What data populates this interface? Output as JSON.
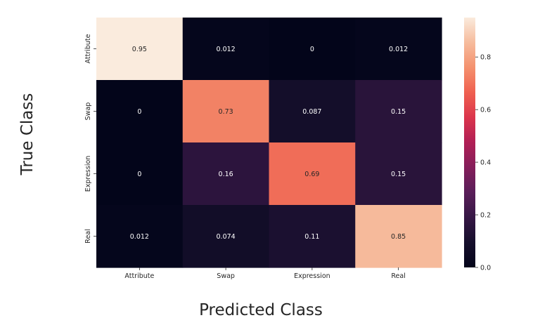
{
  "chart_data": {
    "type": "heatmap",
    "xlabel": "Predicted Class",
    "ylabel": "True Class",
    "x_categories": [
      "Attribute",
      "Swap",
      "Expression",
      "Real"
    ],
    "y_categories": [
      "Attribute",
      "Swap",
      "Expression",
      "Real"
    ],
    "values": [
      [
        0.95,
        0.012,
        0,
        0.012
      ],
      [
        0,
        0.73,
        0.087,
        0.15
      ],
      [
        0,
        0.16,
        0.69,
        0.15
      ],
      [
        0.012,
        0.074,
        0.11,
        0.85
      ]
    ],
    "cell_labels": [
      [
        "0.95",
        "0.012",
        "0",
        "0.012"
      ],
      [
        "0",
        "0.73",
        "0.087",
        "0.15"
      ],
      [
        "0",
        "0.16",
        "0.69",
        "0.15"
      ],
      [
        "0.012",
        "0.074",
        "0.11",
        "0.85"
      ]
    ],
    "colorbar": {
      "range": [
        0,
        0.95
      ],
      "ticks": [
        0.0,
        0.2,
        0.4,
        0.6,
        0.8
      ],
      "tick_labels": [
        "0.0",
        "0.2",
        "0.4",
        "0.6",
        "0.8"
      ]
    },
    "colormap": "rocket"
  }
}
